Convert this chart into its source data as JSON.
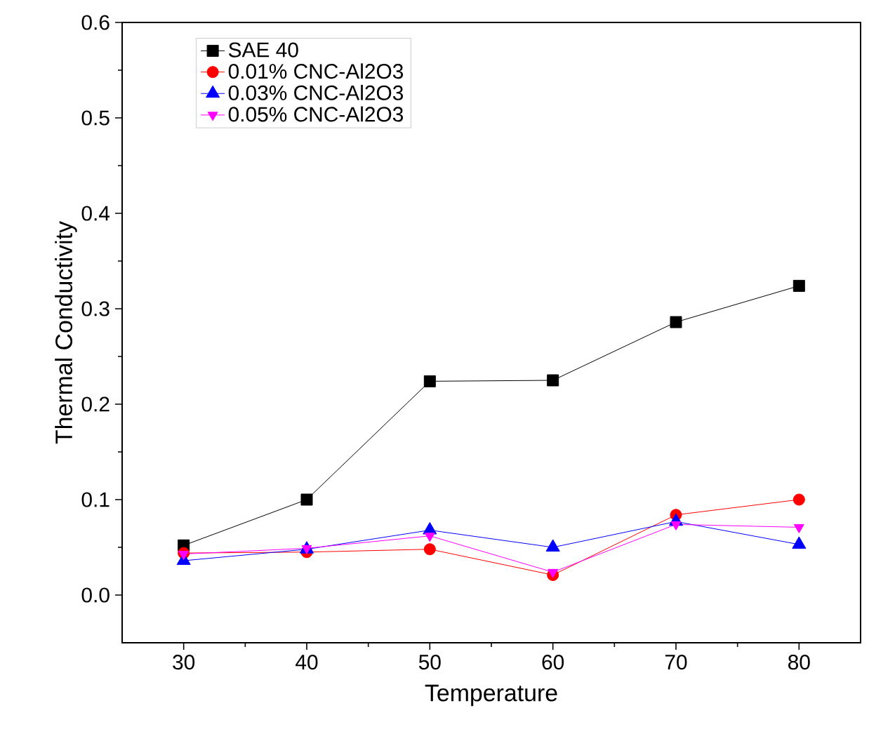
{
  "chart_data": {
    "type": "line",
    "xlabel": "Temperature",
    "ylabel": "Thermal Conductivity",
    "x": [
      30,
      40,
      50,
      60,
      70,
      80
    ],
    "series": [
      {
        "name": "SAE 40",
        "color": "#000000",
        "marker": "square",
        "values": [
          0.052,
          0.1,
          0.224,
          0.225,
          0.286,
          0.324
        ]
      },
      {
        "name": "0.01% CNC-Al2O3",
        "color": "#ff0000",
        "marker": "circle",
        "values": [
          0.044,
          0.045,
          0.048,
          0.021,
          0.084,
          0.1
        ]
      },
      {
        "name": "0.03% CNC-Al2O3",
        "color": "#0000ff",
        "marker": "triangle",
        "values": [
          0.036,
          0.048,
          0.068,
          0.05,
          0.077,
          0.053
        ]
      },
      {
        "name": "0.05% CNC-Al2O3",
        "color": "#ff00ff",
        "marker": "triangle-down",
        "values": [
          0.043,
          0.049,
          0.062,
          0.024,
          0.074,
          0.071
        ]
      }
    ],
    "xlim": [
      25,
      85
    ],
    "ylim": [
      -0.05,
      0.6
    ],
    "xticks": [
      30,
      40,
      50,
      60,
      70,
      80
    ],
    "yticks": [
      {
        "value": 0,
        "label": "0.0"
      },
      0.1,
      0.2,
      0.3,
      0.4,
      0.5,
      0.6
    ],
    "grid": false,
    "legend": "top left",
    "line_style": "solid"
  }
}
